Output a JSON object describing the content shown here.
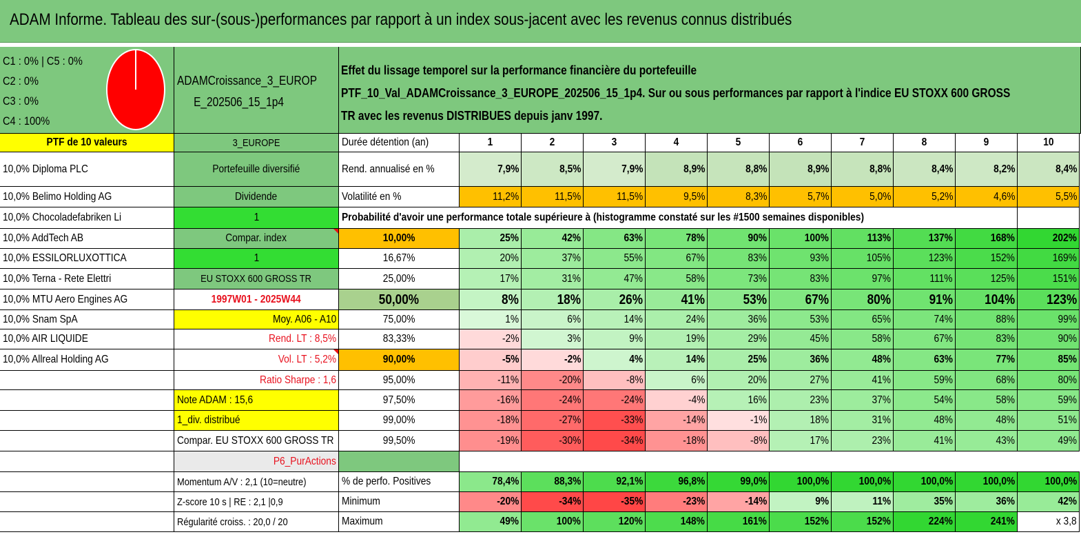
{
  "title": "ADAM Informe. Tableau des sur-(sous-)performances par rapport à un index sous-jacent avec les revenus connus distribués",
  "pie_legend": [
    "C1 : 0% | C5 : 0%",
    "C2 : 0%",
    "C3 : 0%",
    "C4 : 100%"
  ],
  "pie_color": "#ff0000",
  "portfolio_name": [
    "ADAMCroissance_3_EUROP",
    "E_202506_15_1p4"
  ],
  "description": [
    "Effet du lissage temporel sur la performance financière du portefeuille",
    "PTF_10_Val_ADAMCroissance_3_EUROPE_202506_15_1p4. Sur ou sous performances par rapport à l'indice EU STOXX 600 GROSS",
    "TR avec les revenus DISTRIBUES depuis janv 1997."
  ],
  "holdings_header": "PTF de 10 valeurs",
  "holdings": [
    "10,0% Diploma PLC",
    "10,0% Belimo Holding AG",
    "10,0% Chocoladefabriken Li",
    "10,0% AddTech AB",
    "10,0% ESSILORLUXOTTICA",
    "10,0% Terna - Rete Elettri",
    "10,0% MTU Aero Engines AG",
    "10,0% Snam SpA",
    "10,0% AIR LIQUIDE",
    "10,0% Allreal Holding AG"
  ],
  "info": {
    "region": "3_EUROPE",
    "type": "Portefeuille diversifié",
    "dividend_label": "Dividende",
    "dividend_value": "1",
    "compar_label": "Compar. index",
    "compar_value": "1",
    "index_name": "EU STOXX 600 GROSS TR",
    "period": "1997W01 - 2025W44",
    "moy": "Moy. A06 - A10",
    "rend_lt": "Rend. LT : 8,5%",
    "vol_lt": "Vol. LT : 5,2%",
    "sharpe": "Ratio Sharpe : 1,6",
    "note": "Note ADAM : 15,6",
    "div_distrib": "1_div. distribué",
    "compar_full": "Compar. EU STOXX 600 GROSS TR",
    "p6": "P6_PurActions",
    "momentum": "Momentum A/V : 2,1 (10=neutre)",
    "zscore": "Z-score 10 s | RE : 2,1 |0,9",
    "regularite": "Régularité croiss. : 20,0 / 20"
  },
  "table": {
    "duration_label": "Durée détention (an)",
    "years": [
      "1",
      "2",
      "3",
      "4",
      "5",
      "6",
      "7",
      "8",
      "9",
      "10"
    ],
    "rend_label": "Rend. annualisé en %",
    "rend": [
      "7,9%",
      "8,5%",
      "7,9%",
      "8,9%",
      "8,8%",
      "8,9%",
      "8,8%",
      "8,4%",
      "8,2%",
      "8,4%"
    ],
    "vol_label": "Volatilité en %",
    "vol": [
      "11,2%",
      "11,5%",
      "11,5%",
      "9,5%",
      "8,3%",
      "5,7%",
      "5,0%",
      "5,2%",
      "4,6%",
      "5,5%"
    ],
    "prob_title": "Probabilité d'avoir une performance totale supérieure à (histogramme constaté sur les #1500 semaines disponibles)",
    "prob_rows": [
      {
        "p": "10,00%",
        "v": [
          "25%",
          "42%",
          "63%",
          "78%",
          "90%",
          "100%",
          "113%",
          "137%",
          "168%",
          "202%"
        ]
      },
      {
        "p": "16,67%",
        "v": [
          "20%",
          "37%",
          "55%",
          "67%",
          "83%",
          "93%",
          "105%",
          "123%",
          "152%",
          "169%"
        ]
      },
      {
        "p": "25,00%",
        "v": [
          "17%",
          "31%",
          "47%",
          "58%",
          "73%",
          "83%",
          "97%",
          "111%",
          "125%",
          "151%"
        ]
      },
      {
        "p": "50,00%",
        "v": [
          "8%",
          "18%",
          "26%",
          "41%",
          "53%",
          "67%",
          "80%",
          "91%",
          "104%",
          "123%"
        ]
      },
      {
        "p": "75,00%",
        "v": [
          "1%",
          "6%",
          "14%",
          "24%",
          "36%",
          "53%",
          "65%",
          "74%",
          "88%",
          "99%"
        ]
      },
      {
        "p": "83,33%",
        "v": [
          "-2%",
          "3%",
          "9%",
          "19%",
          "29%",
          "45%",
          "58%",
          "67%",
          "83%",
          "90%"
        ]
      },
      {
        "p": "90,00%",
        "v": [
          "-5%",
          "-2%",
          "4%",
          "14%",
          "25%",
          "36%",
          "48%",
          "63%",
          "77%",
          "85%"
        ]
      },
      {
        "p": "95,00%",
        "v": [
          "-11%",
          "-20%",
          "-8%",
          "6%",
          "20%",
          "27%",
          "41%",
          "59%",
          "68%",
          "80%"
        ]
      },
      {
        "p": "97,50%",
        "v": [
          "-16%",
          "-24%",
          "-24%",
          "-4%",
          "16%",
          "23%",
          "37%",
          "54%",
          "58%",
          "59%"
        ]
      },
      {
        "p": "99,00%",
        "v": [
          "-18%",
          "-27%",
          "-33%",
          "-14%",
          "-1%",
          "18%",
          "31%",
          "48%",
          "48%",
          "51%"
        ]
      },
      {
        "p": "99,50%",
        "v": [
          "-19%",
          "-30%",
          "-34%",
          "-18%",
          "-8%",
          "17%",
          "23%",
          "41%",
          "43%",
          "49%"
        ]
      }
    ],
    "pos_label": "% de perfo. Positives",
    "pos": [
      "78,4%",
      "88,3%",
      "92,1%",
      "96,8%",
      "99,0%",
      "100,0%",
      "100,0%",
      "100,0%",
      "100,0%",
      "100,0%"
    ],
    "min_label": "Minimum",
    "min": [
      "-20%",
      "-34%",
      "-35%",
      "-23%",
      "-14%",
      "9%",
      "11%",
      "35%",
      "36%",
      "42%"
    ],
    "max_label": "Maximum",
    "max": [
      "49%",
      "100%",
      "120%",
      "148%",
      "161%",
      "152%",
      "152%",
      "224%",
      "241%",
      "x 3,8"
    ]
  }
}
